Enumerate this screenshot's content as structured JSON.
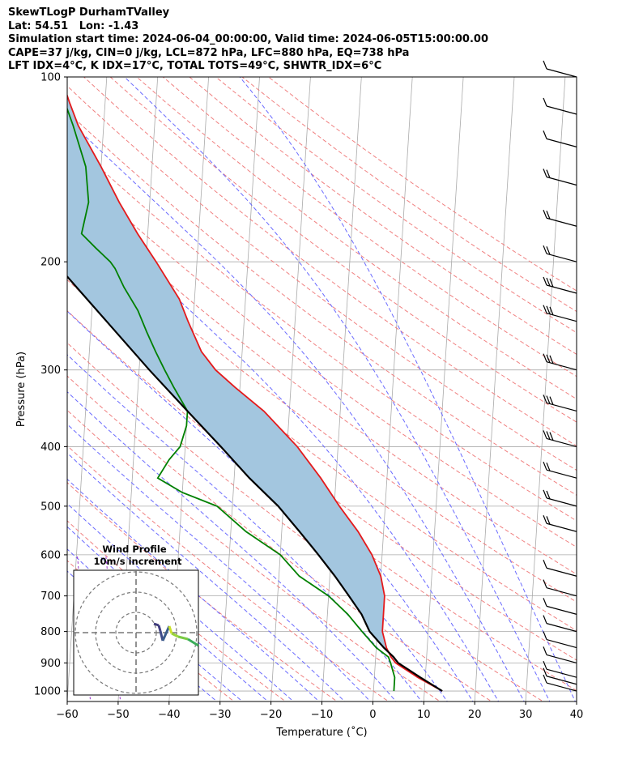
{
  "header": {
    "line1": "SkewTLogP DurhamTValley",
    "line2": "Lat: 54.51   Lon: -1.43",
    "line3": "Simulation start time: 2024-06-04_00:00:00, Valid time: 2024-06-05T15:00:00.00",
    "line4": "CAPE=37 j/kg, CIN=0 j/kg, LCL=872 hPa, LFC=880 hPa, EQ=738 hPa",
    "line5": "LFT IDX=4°C, K IDX=17°C, TOTAL TOTS=49°C, SHWTR_IDX=6°C"
  },
  "colors": {
    "temperature": "#e41a1c",
    "dewpoint": "#008000",
    "parcel": "#000000",
    "cape_fill": "#a3c6df",
    "dry_adiabat": "#f08080",
    "moist_adiabat": "#6a6aff",
    "mixing_ratio": "#9932cc",
    "isotherm": "#aaaaaa"
  },
  "chart_data": {
    "type": "line",
    "title": "SkewTLogP DurhamTValley",
    "xlabel": "Temperature (˚C)",
    "ylabel": "Pressure (hPa)",
    "xlim": [
      -60,
      40
    ],
    "ylim": [
      1040,
      100
    ],
    "y_scale": "log",
    "grid": true,
    "x_ticks": [
      "−60",
      "−50",
      "−40",
      "−30",
      "−20",
      "−10",
      "0",
      "10",
      "20",
      "30",
      "40"
    ],
    "x_tick_values": [
      -60,
      -50,
      -40,
      -30,
      -20,
      -10,
      0,
      10,
      20,
      30,
      40
    ],
    "y_ticks": [
      "100",
      "200",
      "300",
      "400",
      "500",
      "600",
      "700",
      "800",
      "900",
      "1000"
    ],
    "y_tick_values": [
      100,
      200,
      300,
      400,
      500,
      600,
      700,
      800,
      900,
      1000
    ],
    "series": [
      {
        "name": "temperature",
        "points": [
          [
            1000,
            13.5
          ],
          [
            950,
            8.5
          ],
          [
            900,
            4
          ],
          [
            880,
            3
          ],
          [
            850,
            2
          ],
          [
            800,
            1
          ],
          [
            750,
            1
          ],
          [
            700,
            1
          ],
          [
            650,
            0
          ],
          [
            600,
            -2
          ],
          [
            550,
            -5
          ],
          [
            500,
            -9
          ],
          [
            450,
            -13
          ],
          [
            400,
            -18
          ],
          [
            350,
            -25
          ],
          [
            320,
            -31
          ],
          [
            300,
            -35
          ],
          [
            280,
            -38
          ],
          [
            250,
            -41
          ],
          [
            230,
            -43
          ],
          [
            200,
            -48
          ],
          [
            180,
            -52
          ],
          [
            160,
            -56
          ],
          [
            140,
            -60
          ],
          [
            120,
            -65
          ],
          [
            110,
            -67
          ],
          [
            100,
            -69
          ]
        ]
      },
      {
        "name": "dewpoint",
        "points": [
          [
            1000,
            4
          ],
          [
            950,
            4
          ],
          [
            900,
            3
          ],
          [
            880,
            2.5
          ],
          [
            850,
            0
          ],
          [
            800,
            -3
          ],
          [
            750,
            -6
          ],
          [
            700,
            -10
          ],
          [
            650,
            -16
          ],
          [
            600,
            -20
          ],
          [
            550,
            -27
          ],
          [
            500,
            -33
          ],
          [
            475,
            -40
          ],
          [
            450,
            -45
          ],
          [
            420,
            -43
          ],
          [
            400,
            -41
          ],
          [
            370,
            -40
          ],
          [
            350,
            -40
          ],
          [
            320,
            -43
          ],
          [
            300,
            -45
          ],
          [
            280,
            -47
          ],
          [
            260,
            -49
          ],
          [
            240,
            -51
          ],
          [
            220,
            -54
          ],
          [
            205,
            -56
          ],
          [
            200,
            -57
          ],
          [
            190,
            -60
          ],
          [
            180,
            -63
          ],
          [
            160,
            -62
          ],
          [
            140,
            -63
          ],
          [
            120,
            -66
          ],
          [
            100,
            -70
          ]
        ]
      },
      {
        "name": "parcel",
        "points": [
          [
            1000,
            13.5
          ],
          [
            950,
            9
          ],
          [
            900,
            4.5
          ],
          [
            880,
            3.5
          ],
          [
            850,
            1.5
          ],
          [
            800,
            -1.5
          ],
          [
            750,
            -3.3
          ],
          [
            700,
            -6
          ],
          [
            650,
            -9
          ],
          [
            600,
            -12.5
          ],
          [
            550,
            -16.5
          ],
          [
            500,
            -21
          ],
          [
            450,
            -27
          ],
          [
            400,
            -33
          ],
          [
            350,
            -40
          ],
          [
            300,
            -48
          ],
          [
            250,
            -57
          ],
          [
            200,
            -68
          ],
          [
            150,
            -82
          ],
          [
            100,
            -94
          ]
        ]
      }
    ],
    "wind_barbs": [
      {
        "p": 1000,
        "label": "light"
      },
      {
        "p": 975,
        "label": "light"
      },
      {
        "p": 950,
        "label": "light"
      },
      {
        "p": 900,
        "label": "light"
      },
      {
        "p": 850,
        "label": "light"
      },
      {
        "p": 800,
        "label": "light"
      },
      {
        "p": 750,
        "label": "light"
      },
      {
        "p": 700,
        "label": "light"
      },
      {
        "p": 650,
        "label": "light"
      },
      {
        "p": 550,
        "label": "moderate"
      },
      {
        "p": 500,
        "label": "moderate"
      },
      {
        "p": 450,
        "label": "moderate"
      },
      {
        "p": 400,
        "label": "strong"
      },
      {
        "p": 350,
        "label": "strong"
      },
      {
        "p": 300,
        "label": "strong"
      },
      {
        "p": 250,
        "label": "strong"
      },
      {
        "p": 225,
        "label": "strong"
      },
      {
        "p": 200,
        "label": "moderate"
      },
      {
        "p": 175,
        "label": "moderate"
      },
      {
        "p": 150,
        "label": "moderate"
      },
      {
        "p": 130,
        "label": "light"
      },
      {
        "p": 115,
        "label": "light"
      },
      {
        "p": 100,
        "label": "light"
      }
    ],
    "hodograph": {
      "title": "Wind Profile",
      "subtitle": "10m/s increment"
    }
  }
}
